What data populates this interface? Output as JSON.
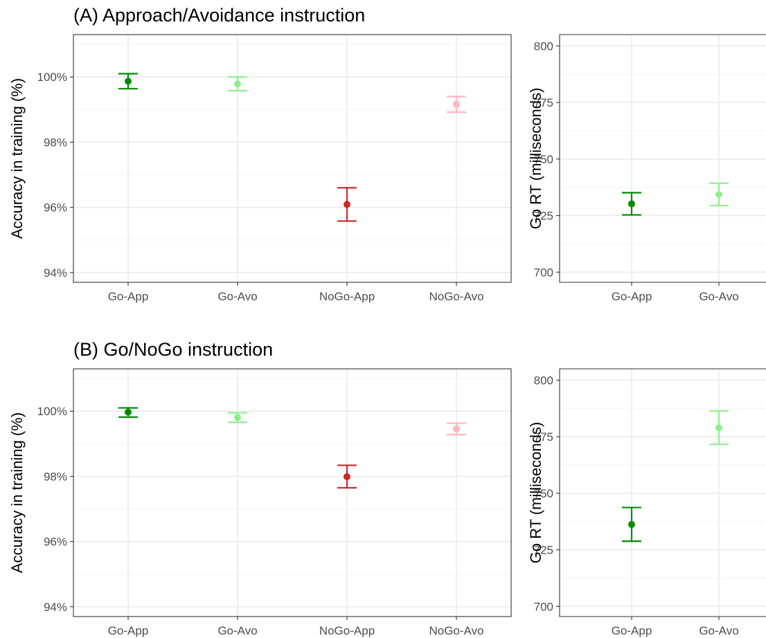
{
  "colors": {
    "Go-App": "#008c00",
    "Go-Avo": "#90ee90",
    "NoGo-App": "#c8282d",
    "NoGo-Avo": "#ffb6c1"
  },
  "chart_data": [
    {
      "type": "scatter",
      "title": "(A) Approach/Avoidance instruction",
      "ylabel": "Accuracy in training (%)",
      "xlabel": "",
      "categories": [
        "Go-App",
        "Go-Avo",
        "NoGo-App",
        "NoGo-Avo"
      ],
      "values": [
        99.87,
        99.79,
        96.09,
        99.16
      ],
      "error_low": [
        99.64,
        99.58,
        95.58,
        98.92
      ],
      "error_high": [
        100.1,
        100.0,
        96.6,
        99.4
      ],
      "ylim": [
        93.7,
        101.3
      ],
      "y_ticks": [
        94,
        96,
        98,
        100
      ],
      "y_tick_labels": [
        "94%",
        "96%",
        "98%",
        "100%"
      ],
      "grid": true,
      "legend": "none"
    },
    {
      "type": "scatter",
      "title": "",
      "ylabel": "Go RT (milliseconds)",
      "xlabel": "",
      "categories": [
        "Go-App",
        "Go-Avo"
      ],
      "values": [
        730.2,
        734.3
      ],
      "error_low": [
        725.3,
        729.4
      ],
      "error_high": [
        735.1,
        739.3
      ],
      "ylim": [
        695.5,
        805
      ],
      "y_ticks": [
        700,
        725,
        750,
        775,
        800
      ],
      "y_tick_labels": [
        "700",
        "725",
        "750",
        "775",
        "800"
      ],
      "grid": true,
      "legend": "none"
    },
    {
      "type": "scatter",
      "title": "(B) Go/NoGo instruction",
      "ylabel": "Accuracy in training (%)",
      "xlabel": "",
      "categories": [
        "Go-App",
        "Go-Avo",
        "NoGo-App",
        "NoGo-Avo"
      ],
      "values": [
        99.97,
        99.81,
        97.99,
        99.46
      ],
      "error_low": [
        99.82,
        99.66,
        97.65,
        99.28
      ],
      "error_high": [
        100.1,
        99.95,
        98.34,
        99.63
      ],
      "ylim": [
        93.7,
        101.3
      ],
      "y_ticks": [
        94,
        96,
        98,
        100
      ],
      "y_tick_labels": [
        "94%",
        "96%",
        "98%",
        "100%"
      ],
      "grid": true,
      "legend": "none"
    },
    {
      "type": "scatter",
      "title": "",
      "ylabel": "Go RT (milliseconds)",
      "xlabel": "",
      "categories": [
        "Go-App",
        "Go-Avo"
      ],
      "values": [
        736.2,
        779.0
      ],
      "error_low": [
        728.8,
        771.6
      ],
      "error_high": [
        743.7,
        786.4
      ],
      "ylim": [
        695.5,
        805
      ],
      "y_ticks": [
        700,
        725,
        750,
        775,
        800
      ],
      "y_tick_labels": [
        "700",
        "725",
        "750",
        "775",
        "800"
      ],
      "grid": true,
      "legend": "none"
    }
  ]
}
